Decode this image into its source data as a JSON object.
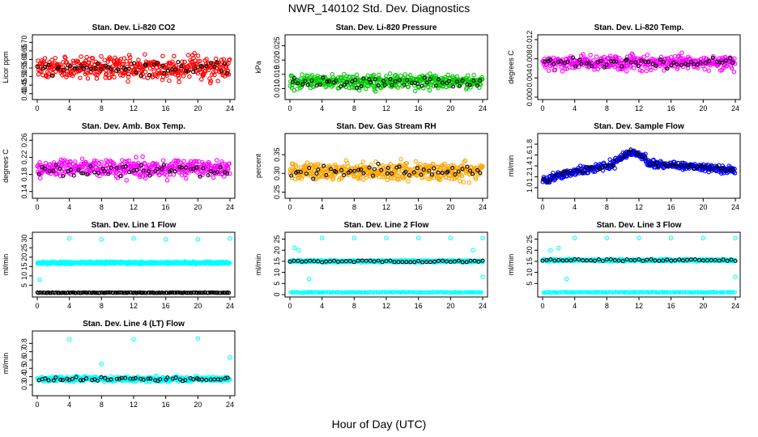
{
  "page": {
    "title": "NWR_140102  Std. Dev. Diagnostics",
    "xlabel": "Hour of Day (UTC)"
  },
  "chart_data": [
    {
      "type": "scatter",
      "title": "Stan. Dev. Li-820 CO2",
      "ylabel": "Licor ppm",
      "color": "#ff0000",
      "xlim": [
        0,
        24
      ],
      "ylim": [
        0.38,
        0.73
      ],
      "yticks": [
        "0.40",
        "0.45",
        "0.50",
        "0.55",
        "0.60",
        "0.65",
        "0.70"
      ],
      "xticks": [
        "0",
        "4",
        "8",
        "12",
        "16",
        "20",
        "24"
      ],
      "series": [
        {
          "values": {
            "base": 0.55,
            "spread": 0.11,
            "seed": 1
          }
        },
        {
          "values": {
            "base": 0.55,
            "spread": 0.07,
            "seed": 101
          }
        }
      ]
    },
    {
      "type": "scatter",
      "title": "Stan. Dev. Li-820 Pressure",
      "ylabel": "kPa",
      "color": "#00cc00",
      "xlim": [
        0,
        24
      ],
      "ylim": [
        0.007,
        0.028
      ],
      "yticks": [
        "0.010",
        "0.015",
        "0.020",
        "0.025"
      ],
      "xticks": [
        "0",
        "4",
        "8",
        "12",
        "16",
        "20",
        "24"
      ],
      "series": [
        {
          "values": {
            "base": 0.0125,
            "spread": 0.004,
            "seed": 2
          }
        },
        {
          "values": {
            "base": 0.012,
            "spread": 0.003,
            "seed": 102
          }
        }
      ]
    },
    {
      "type": "scatter",
      "title": "Stan. Dev. Li-820 Temp.",
      "ylabel": "degrees C",
      "color": "#ff00ff",
      "xlim": [
        0,
        24
      ],
      "ylim": [
        0,
        0.0125
      ],
      "yticks": [
        "0.000",
        "0.004",
        "0.008",
        "0.012"
      ],
      "xticks": [
        "0",
        "4",
        "8",
        "12",
        "16",
        "20",
        "24"
      ],
      "series": [
        {
          "values": {
            "base": 0.0072,
            "spread": 0.0025,
            "seed": 3
          }
        },
        {
          "values": {
            "base": 0.0072,
            "spread": 0.0018,
            "seed": 103
          }
        }
      ]
    },
    {
      "type": "scatter",
      "title": "Stan. Dev. Amb. Box Temp.",
      "ylabel": "degrees C",
      "color": "#ff00ff",
      "xlim": [
        0,
        24
      ],
      "ylim": [
        0.13,
        0.27
      ],
      "yticks": [
        "0.14",
        "0.18",
        "0.22",
        "0.26"
      ],
      "xticks": [
        "0",
        "4",
        "8",
        "12",
        "16",
        "20",
        "24"
      ],
      "series": [
        {
          "values": {
            "base": 0.195,
            "spread": 0.035,
            "seed": 4
          }
        },
        {
          "values": {
            "base": 0.19,
            "spread": 0.025,
            "seed": 104
          }
        }
      ]
    },
    {
      "type": "scatter",
      "title": "Stan. Dev. Gas Stream RH",
      "ylabel": "percent",
      "color": "#ffa500",
      "xlim": [
        0,
        24
      ],
      "ylim": [
        0.24,
        0.4
      ],
      "yticks": [
        "0.25",
        "0.30",
        "0.35"
      ],
      "xticks": [
        "0",
        "4",
        "8",
        "12",
        "16",
        "20",
        "24"
      ],
      "series": [
        {
          "values": {
            "base": 0.305,
            "spread": 0.04,
            "seed": 5
          }
        },
        {
          "values": {
            "base": 0.305,
            "spread": 0.03,
            "seed": 105
          }
        }
      ]
    },
    {
      "type": "scatter",
      "title": "Stan. Dev. Sample Flow",
      "ylabel": "ml/min",
      "color": "#0000ff",
      "xlim": [
        0,
        24
      ],
      "ylim": [
        0.85,
        1.95
      ],
      "yticks": [
        "1.0",
        "1.2",
        "1.4",
        "1.6",
        "1.8"
      ],
      "xticks": [
        "0",
        "4",
        "8",
        "12",
        "16",
        "20",
        "24"
      ],
      "series": [
        {
          "values": {
            "profile": "sample_flow",
            "spread": 0.12,
            "seed": 6
          }
        },
        {
          "values": {
            "profile": "sample_flow",
            "spread": 0.08,
            "seed": 106
          }
        }
      ]
    },
    {
      "type": "scatter",
      "title": "Stan. Dev. Line 1 Flow",
      "ylabel": "ml/min",
      "color": "#00ffff",
      "xlim": [
        0,
        24
      ],
      "ylim": [
        0,
        32
      ],
      "yticks": [
        "5",
        "10",
        "15",
        "20",
        "25",
        "30"
      ],
      "xticks": [
        "0",
        "4",
        "8",
        "12",
        "16",
        "20",
        "24"
      ],
      "series": [
        {
          "values": {
            "base": 17,
            "spread": 1,
            "seed": 7,
            "outliers": [
              [
                4,
                30
              ],
              [
                8,
                29.5
              ],
              [
                12,
                30
              ],
              [
                16,
                29.5
              ],
              [
                20,
                29.5
              ],
              [
                24,
                30
              ],
              [
                0.3,
                8
              ]
            ]
          }
        },
        {
          "values": {
            "base": 1,
            "spread": 0.3,
            "seed": 107,
            "black": true
          }
        }
      ]
    },
    {
      "type": "scatter",
      "title": "Stan. Dev. Line 2 Flow",
      "ylabel": "ml/min",
      "color": "#00ffff",
      "xlim": [
        0,
        24
      ],
      "ylim": [
        0,
        27
      ],
      "yticks": [
        "0",
        "5",
        "10",
        "15",
        "20",
        "25"
      ],
      "xticks": [
        "0",
        "4",
        "8",
        "12",
        "16",
        "20",
        "24"
      ],
      "series": [
        {
          "values": {
            "base": 15,
            "spread": 0.8,
            "seed": 8,
            "outliers": [
              [
                4,
                25.5
              ],
              [
                8,
                25.5
              ],
              [
                12,
                25.5
              ],
              [
                16,
                25.5
              ],
              [
                20,
                25.5
              ],
              [
                24,
                25.5
              ],
              [
                0.6,
                21
              ],
              [
                1.1,
                20
              ],
              [
                2.4,
                7
              ],
              [
                22.8,
                20
              ],
              [
                24,
                8
              ]
            ]
          }
        },
        {
          "values": {
            "base": 1,
            "spread": 0.3,
            "seed": 108,
            "cyanBand": true
          }
        }
      ]
    },
    {
      "type": "scatter",
      "title": "Stan. Dev. Line 3 Flow",
      "ylabel": "ml/min",
      "color": "#00ffff",
      "xlim": [
        0,
        24
      ],
      "ylim": [
        0,
        27
      ],
      "yticks": [
        "5",
        "10",
        "15",
        "20",
        "25"
      ],
      "xticks": [
        "0",
        "4",
        "8",
        "12",
        "16",
        "20",
        "24"
      ],
      "series": [
        {
          "values": {
            "base": 15.5,
            "spread": 0.8,
            "seed": 9,
            "outliers": [
              [
                4,
                25.5
              ],
              [
                8,
                25.5
              ],
              [
                12,
                25.5
              ],
              [
                16,
                25.5
              ],
              [
                20,
                25.5
              ],
              [
                24,
                25.5
              ],
              [
                1,
                20
              ],
              [
                2,
                21
              ],
              [
                3,
                7
              ],
              [
                24,
                8
              ]
            ]
          }
        },
        {
          "values": {
            "base": 1,
            "spread": 0.3,
            "seed": 109,
            "cyanBand": true
          }
        }
      ]
    },
    {
      "type": "scatter",
      "title": "Stan. Dev. Line 4 (LT) Flow",
      "ylabel": "ml/min",
      "color": "#00ffff",
      "xlim": [
        0,
        24
      ],
      "ylim": [
        0.2,
        0.92
      ],
      "yticks": [
        "0.3",
        "0.4",
        "0.5",
        "0.6",
        "0.7",
        "0.8"
      ],
      "xticks": [
        "0",
        "4",
        "8",
        "12",
        "16",
        "20",
        "24"
      ],
      "series": [
        {
          "values": {
            "base": 0.37,
            "spread": 0.05,
            "seed": 10,
            "outliers": [
              [
                4,
                0.85
              ],
              [
                12,
                0.85
              ],
              [
                20,
                0.86
              ],
              [
                24,
                0.63
              ],
              [
                8,
                0.55
              ]
            ]
          }
        },
        {
          "values": {
            "base": 0.37,
            "spread": 0.04,
            "seed": 110
          }
        }
      ]
    }
  ]
}
